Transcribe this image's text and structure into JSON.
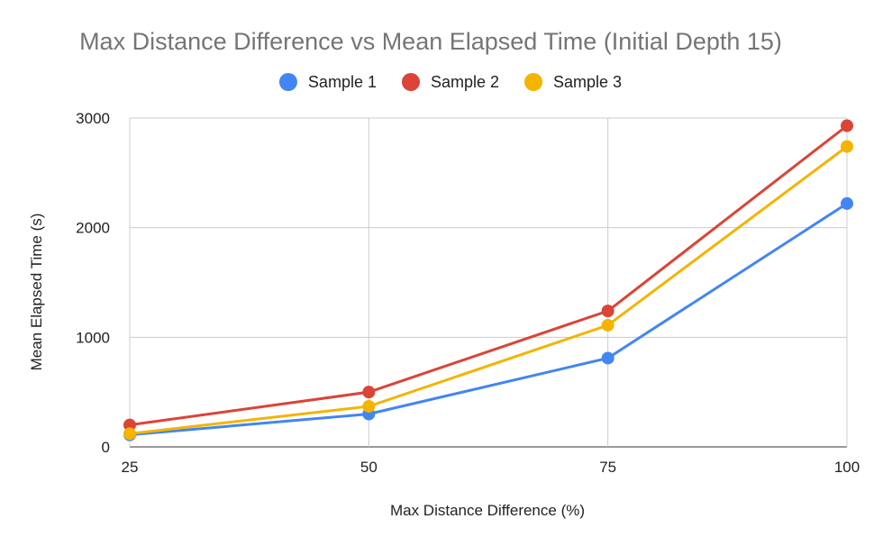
{
  "chart_data": {
    "type": "line",
    "title": "Max Distance Difference vs Mean Elapsed Time (Initial Depth 15)",
    "xlabel": "Max Distance Difference (%)",
    "ylabel": "Mean Elapsed Time (s)",
    "x": [
      25,
      50,
      75,
      100
    ],
    "x_ticks": [
      "25",
      "50",
      "75",
      "100"
    ],
    "y_ticks": [
      "0",
      "1000",
      "2000",
      "3000"
    ],
    "xlim": [
      25,
      100
    ],
    "ylim": [
      0,
      3000
    ],
    "grid": true,
    "legend_position": "top",
    "series": [
      {
        "name": "Sample 1",
        "color": "#4285F4",
        "values": [
          110,
          300,
          810,
          2220
        ]
      },
      {
        "name": "Sample 2",
        "color": "#DB4437",
        "values": [
          200,
          500,
          1240,
          2930
        ]
      },
      {
        "name": "Sample 3",
        "color": "#F4B400",
        "values": [
          120,
          370,
          1110,
          2740
        ]
      }
    ]
  }
}
